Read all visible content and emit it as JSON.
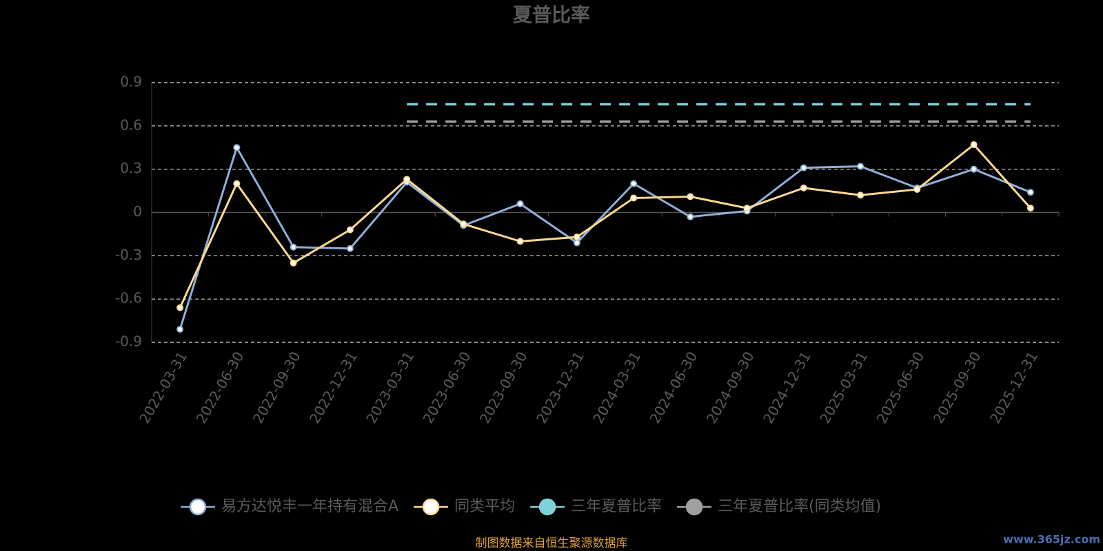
{
  "chart_data": {
    "type": "line",
    "title": "夏普比率",
    "categories": [
      "2022-03-31",
      "2022-06-30",
      "2022-09-30",
      "2022-12-31",
      "2023-03-31",
      "2023-06-30",
      "2023-09-30",
      "2023-12-31",
      "2024-03-31",
      "2024-06-30",
      "2024-09-30",
      "2024-12-31",
      "2025-03-31",
      "2025-06-30",
      "2025-09-30",
      "2025-12-31"
    ],
    "series": [
      {
        "name": "易方达悦丰一年持有混合A",
        "color": "#8fb0da",
        "values": [
          -0.81,
          0.45,
          -0.24,
          -0.25,
          0.21,
          -0.09,
          0.06,
          -0.21,
          0.2,
          -0.03,
          0.01,
          0.31,
          0.32,
          0.17,
          0.3,
          0.14
        ]
      },
      {
        "name": "同类平均",
        "color": "#ffd98e",
        "values": [
          -0.66,
          0.2,
          -0.35,
          -0.12,
          0.23,
          -0.08,
          -0.2,
          -0.17,
          0.1,
          0.11,
          0.03,
          0.17,
          0.12,
          0.16,
          0.47,
          0.03
        ]
      },
      {
        "name": "三年夏普比率",
        "color": "#7fd3d8",
        "values": [
          null,
          null,
          null,
          null,
          0.75,
          0.75,
          0.75,
          0.75,
          0.75,
          0.75,
          0.75,
          0.75,
          0.75,
          0.75,
          0.75,
          0.75
        ]
      },
      {
        "name": "三年夏普比率(同类均值)",
        "color": "#a0a0a0",
        "values": [
          null,
          null,
          null,
          null,
          0.63,
          0.63,
          0.63,
          0.63,
          0.63,
          0.63,
          0.63,
          0.63,
          0.63,
          0.63,
          0.63,
          0.63
        ]
      }
    ],
    "ylim": [
      -0.9,
      0.9
    ],
    "yticks": [
      -0.9,
      -0.6,
      -0.3,
      0,
      0.3,
      0.6,
      0.9
    ],
    "grid": true,
    "legend": "bottom",
    "source": "制图数据来自恒生聚源数据库",
    "watermark": "www.365jz.com"
  }
}
